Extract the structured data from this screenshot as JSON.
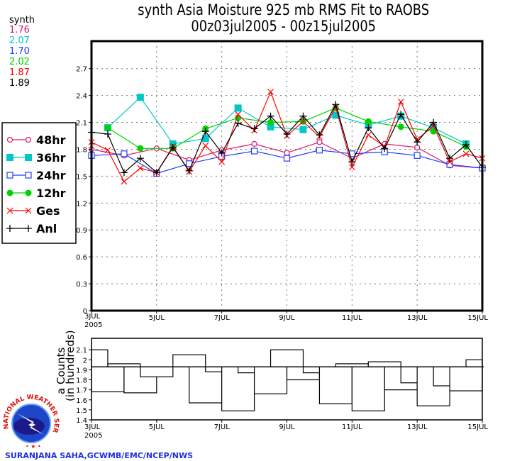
{
  "title": {
    "line1": "synth Asia Moisture 925 mb RMS Fit to RAOBS",
    "line2": "00z03jul2005 - 00z15jul2005"
  },
  "stats": {
    "label": "synth",
    "values": [
      {
        "value": "1.76",
        "color": "#e0146e"
      },
      {
        "value": "2.07",
        "color": "#00c8c8"
      },
      {
        "value": "1.70",
        "color": "#1e3cff"
      },
      {
        "value": "2.02",
        "color": "#00d200"
      },
      {
        "value": "1.87",
        "color": "#ff0000"
      },
      {
        "value": "1.89",
        "color": "#000000"
      }
    ]
  },
  "credit": "SURANJANA SAHA,GCWMB/EMC/NCEP/NWS",
  "logo": {
    "text": "NATIONAL WEATHER SERVICE"
  },
  "chart_data": [
    {
      "type": "line",
      "title": "synth Asia Moisture 925 mb RMS Fit to RAOBS",
      "xlim": [
        "3JUL 2005",
        "15JUL 2005"
      ],
      "ylim": [
        0,
        3.0
      ],
      "yticks": [
        "0",
        "0.3",
        "0.6",
        "0.9",
        "1.2",
        "1.5",
        "1.8",
        "2.1",
        "2.4",
        "2.7"
      ],
      "xticks": [
        {
          "day": 3,
          "label": "3JUL",
          "sub": "2005"
        },
        {
          "day": 5,
          "label": "5JUL"
        },
        {
          "day": 7,
          "label": "7JUL"
        },
        {
          "day": 9,
          "label": "9JUL"
        },
        {
          "day": 11,
          "label": "11JUL"
        },
        {
          "day": 13,
          "label": "13JUL"
        },
        {
          "day": 15,
          "label": "15JUL"
        }
      ],
      "grid": true,
      "legend_placement": "left",
      "series": [
        {
          "name": "48hr",
          "color": "#e0146e",
          "marker": "open-circle",
          "x": [
            3,
            4,
            5,
            6,
            7,
            8,
            9,
            10,
            11,
            12,
            13,
            14,
            15
          ],
          "y": [
            1.8,
            1.73,
            1.81,
            1.68,
            1.79,
            1.86,
            1.76,
            1.88,
            1.7,
            1.86,
            1.82,
            1.62,
            1.59
          ]
        },
        {
          "name": "36hr",
          "color": "#00c8c8",
          "marker": "filled-square",
          "x": [
            3.5,
            4.5,
            5.5,
            6.5,
            7.5,
            8.5,
            9.5,
            10.5,
            11.5,
            12.5,
            13.5,
            14.5
          ],
          "y": [
            2.04,
            2.38,
            1.86,
            1.92,
            2.26,
            2.05,
            2.02,
            2.18,
            2.07,
            2.17,
            2.04,
            1.86
          ]
        },
        {
          "name": "24hr",
          "color": "#1e3cff",
          "marker": "open-square",
          "x": [
            3,
            4,
            5,
            6,
            7,
            8,
            9,
            10,
            11,
            12,
            13,
            14,
            15
          ],
          "y": [
            1.73,
            1.75,
            1.53,
            1.64,
            1.72,
            1.78,
            1.7,
            1.79,
            1.75,
            1.77,
            1.73,
            1.63,
            1.59
          ]
        },
        {
          "name": "12hr",
          "color": "#00d200",
          "marker": "filled-circle",
          "x": [
            3.5,
            4.5,
            5.5,
            6.5,
            7.5,
            8.5,
            9.5,
            10.5,
            11.5,
            12.5,
            13.5,
            14.5
          ],
          "y": [
            2.04,
            1.81,
            1.81,
            2.03,
            2.15,
            2.1,
            2.11,
            2.26,
            2.11,
            2.05,
            2.0,
            1.83
          ]
        },
        {
          "name": "Ges",
          "color": "#ff0000",
          "marker": "x",
          "x": [
            3,
            3.5,
            4,
            4.5,
            5,
            5.5,
            6,
            6.5,
            7,
            7.5,
            8,
            8.5,
            9,
            9.5,
            10,
            10.5,
            11,
            11.5,
            12,
            12.5,
            13,
            13.5,
            14,
            14.5,
            15
          ],
          "y": [
            1.88,
            1.79,
            1.44,
            1.59,
            1.54,
            1.83,
            1.55,
            1.84,
            1.66,
            2.19,
            2.01,
            2.44,
            1.95,
            2.11,
            1.94,
            2.27,
            1.6,
            1.96,
            1.83,
            2.33,
            1.91,
            2.06,
            1.66,
            1.75,
            1.7
          ]
        },
        {
          "name": "Anl",
          "color": "#000000",
          "marker": "plus",
          "x": [
            3,
            3.5,
            4,
            4.5,
            5,
            5.5,
            6,
            6.5,
            7,
            7.5,
            8,
            8.5,
            9,
            9.5,
            10,
            10.5,
            11,
            11.5,
            12,
            12.5,
            13,
            13.5,
            14,
            14.5,
            15
          ],
          "y": [
            1.99,
            1.97,
            1.54,
            1.7,
            1.54,
            1.82,
            1.56,
            2.0,
            1.76,
            2.09,
            2.03,
            2.17,
            1.97,
            2.17,
            1.96,
            2.3,
            1.66,
            2.04,
            1.81,
            2.19,
            1.88,
            2.1,
            1.7,
            1.85,
            1.6
          ]
        }
      ]
    },
    {
      "type": "bar",
      "ylabel": "a Counts",
      "ylabel2": "(in hundreds)",
      "ylim": [
        1.4,
        2.2
      ],
      "yticks": [
        "1.4",
        "1.5",
        "1.6",
        "1.7",
        "1.8",
        "1.9",
        "2",
        "2.1"
      ],
      "baseline": 1.93,
      "xticks": [
        {
          "day": 3,
          "label": "3JUL",
          "sub": "2005"
        },
        {
          "day": 5,
          "label": "5JUL"
        },
        {
          "day": 7,
          "label": "7JUL"
        },
        {
          "day": 9,
          "label": "9JUL"
        },
        {
          "day": 11,
          "label": "11JUL"
        },
        {
          "day": 13,
          "label": "13JUL"
        },
        {
          "day": 15,
          "label": "15JUL"
        }
      ],
      "x": [
        3,
        3.5,
        4,
        4.5,
        5,
        5.5,
        6,
        6.5,
        7,
        7.5,
        8,
        8.5,
        9,
        9.5,
        10,
        10.5,
        11,
        11.5,
        12,
        12.5,
        13,
        13.5,
        14,
        14.5,
        15
      ],
      "values": [
        2.1,
        1.68,
        1.96,
        1.67,
        1.83,
        1.93,
        2.05,
        1.57,
        1.88,
        1.49,
        1.87,
        1.66,
        2.1,
        1.8,
        1.87,
        1.56,
        1.96,
        1.49,
        1.98,
        1.7,
        1.77,
        1.54,
        1.74,
        1.69,
        2.0
      ]
    }
  ]
}
